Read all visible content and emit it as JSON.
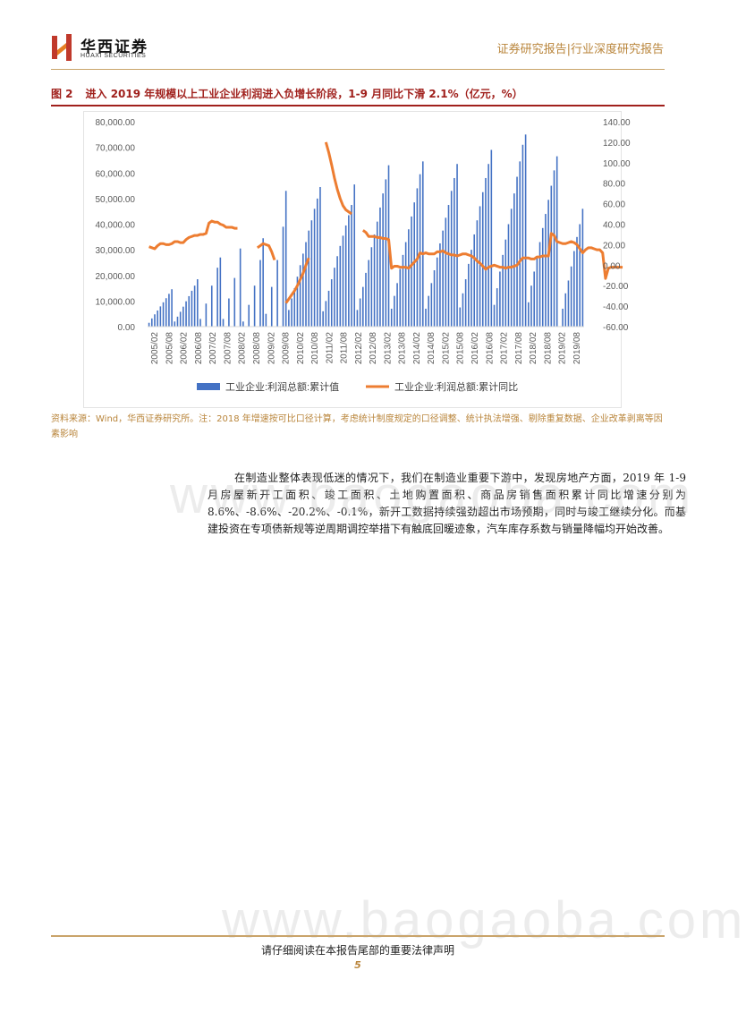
{
  "header": {
    "logo_cn": "华西证券",
    "logo_en": "HUAXI SECURITIES",
    "report_type": "证券研究报告|行业深度研究报告"
  },
  "figure": {
    "number": "图 2",
    "title": "进入 2019 年规模以上工业企业利润进入负增长阶段，1-9 月同比下滑 2.1%（亿元，%）"
  },
  "chart_data": {
    "type": "bar",
    "left_axis": {
      "min": 0,
      "max": 80000,
      "step": 10000,
      "ticks": [
        "0.00",
        "10,000.00",
        "20,000.00",
        "30,000.00",
        "40,000.00",
        "50,000.00",
        "60,000.00",
        "70,000.00",
        "80,000.00"
      ]
    },
    "right_axis": {
      "min": -60,
      "max": 140,
      "step": 20,
      "ticks": [
        "-60.00",
        "-40.00",
        "-20.00",
        "0.00",
        "20.00",
        "40.00",
        "60.00",
        "80.00",
        "100.00",
        "120.00",
        "140.00"
      ]
    },
    "x_labels": [
      "2005/02",
      "2005/08",
      "2006/02",
      "2006/08",
      "2007/02",
      "2007/08",
      "2008/02",
      "2008/08",
      "2009/02",
      "2009/08",
      "2010/02",
      "2010/08",
      "2011/02",
      "2011/08",
      "2012/02",
      "2012/08",
      "2013/02",
      "2013/08",
      "2014/02",
      "2014/08",
      "2015/02",
      "2015/08",
      "2016/02",
      "2016/08",
      "2017/02",
      "2017/08",
      "2018/02",
      "2018/08",
      "2019/02",
      "2019/08"
    ],
    "series": [
      {
        "name": "工业企业:利润总额:累计值",
        "color": "#4472c4",
        "axis": "left",
        "values": [
          1500,
          3200,
          4800,
          6300,
          7900,
          9500,
          11100,
          12800,
          14600,
          2000,
          3900,
          5800,
          7800,
          9900,
          11900,
          14000,
          16000,
          18500,
          3000,
          null,
          9000,
          null,
          16000,
          null,
          23000,
          27000,
          3000,
          null,
          11000,
          null,
          19000,
          null,
          30500,
          2000,
          null,
          8500,
          null,
          16000,
          null,
          26000,
          34500,
          5000,
          null,
          15500,
          null,
          26000,
          null,
          39000,
          53000,
          6500,
          11000,
          15000,
          19500,
          24000,
          28500,
          33000,
          37500,
          41500,
          46000,
          50000,
          54500,
          6000,
          10000,
          14000,
          18500,
          23000,
          27500,
          31500,
          35500,
          39500,
          43500,
          47500,
          55500,
          6500,
          11000,
          15500,
          21000,
          26000,
          31000,
          36000,
          41000,
          46500,
          52000,
          57500,
          63000,
          7000,
          12000,
          17000,
          22500,
          28000,
          33000,
          38000,
          43000,
          48500,
          54000,
          59500,
          64500,
          7000,
          12000,
          17000,
          22000,
          27000,
          32500,
          37500,
          42500,
          47500,
          53000,
          58000,
          63500,
          7500,
          13000,
          18500,
          24500,
          30000,
          36000,
          41500,
          47000,
          52500,
          58000,
          63500,
          69000,
          8500,
          15000,
          21500,
          28000,
          34000,
          40000,
          46000,
          52000,
          58500,
          64500,
          71000,
          75000,
          9500,
          16000,
          21500,
          27500,
          33000,
          38500,
          44000,
          49500,
          55000,
          61000,
          66500,
          null,
          7000,
          13000,
          18000,
          23500,
          29500,
          35000,
          40000,
          46000
        ]
      },
      {
        "name": "工业企业:利润总额:累计同比",
        "color": "#ed7d31",
        "axis": "right",
        "segments": [
          {
            "start": 0,
            "values": [
              18,
              17,
              16,
              19,
              21,
              21,
              20,
              20,
              21,
              23,
              23,
              22,
              22,
              25,
              27,
              28,
              29,
              29,
              30,
              30,
              31,
              41,
              43,
              42,
              42,
              40,
              39,
              37,
              37,
              37,
              36,
              36
            ]
          },
          {
            "start": 38,
            "values": [
              17,
              19,
              21,
              20,
              19,
              13,
              5
            ]
          },
          {
            "start": 48,
            "values": [
              -37,
              -33,
              -29,
              -25,
              -20,
              -14,
              -8,
              0,
              7
            ]
          },
          {
            "start": 62,
            "values": [
              120,
              110,
              98,
              85,
              74,
              65,
              58,
              54,
              52,
              50
            ]
          },
          {
            "start": 75,
            "values": [
              34,
              32,
              28,
              28,
              28,
              27,
              27,
              26,
              26,
              25,
              -3,
              -1,
              -1,
              -2,
              -2,
              -2,
              -3,
              0,
              3,
              6,
              12,
              11,
              12,
              11,
              11,
              11,
              13,
              13,
              14,
              12,
              11,
              10,
              10,
              9,
              10,
              11,
              11,
              10,
              9,
              7,
              4,
              2,
              -1,
              -4,
              -2,
              -1,
              0,
              -1,
              -2,
              -2,
              -3,
              -2,
              -2,
              -1,
              0,
              4,
              7,
              7,
              7,
              6,
              6,
              8,
              8,
              9,
              9,
              9,
              31,
              29,
              23,
              22,
              21,
              21,
              22,
              23,
              22,
              20,
              16,
              12,
              15,
              17,
              17,
              16,
              15,
              15,
              12,
              -13,
              -3,
              -2,
              -2,
              -2,
              -2,
              -2
            ]
          }
        ]
      }
    ],
    "grid": false,
    "legend_position": "bottom"
  },
  "source": "资料来源：Wind，华西证券研究所。注：2018 年增速按可比口径计算，考虑统计制度规定的口径调整、统计执法增强、剔除重复数据、企业改革剥离等因素影响",
  "paragraph": "在制造业整体表现低迷的情况下，我们在制造业重要下游中，发现房地产方面，2019 年 1-9 月房屋新开工面积、竣工面积、土地购置面积、商品房销售面积累计同比增速分别为 8.6%、-8.6%、-20.2%、-0.1%，新开工数据持续强劲超出市场预期，同时与竣工继续分化。而基建投资在专项债新规等逆周期调控举措下有触底回暖迹象，汽车库存系数与销量降幅均开始改善。",
  "watermark": "www.baogaoba.com",
  "footer": {
    "note": "请仔细阅读在本报告尾部的重要法律声明",
    "page": "5"
  },
  "colors": {
    "accent_red": "#a0201c",
    "gold": "#b9853b",
    "bar": "#4472c4",
    "line": "#ed7d31"
  }
}
